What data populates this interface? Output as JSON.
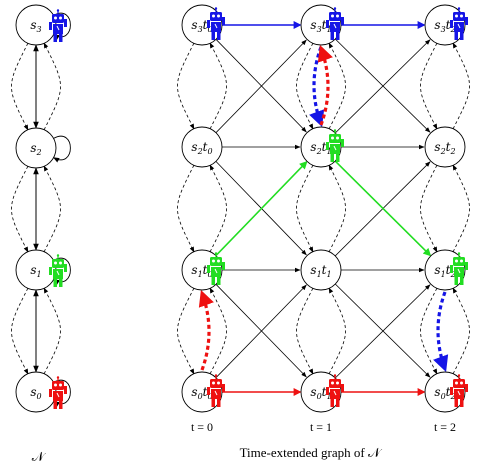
{
  "colors": {
    "blue": "#1515e6",
    "green": "#22dd22",
    "red": "#ee1111",
    "stroke": "#000000"
  },
  "left_graph": {
    "caption": "𝒩",
    "nodes": [
      {
        "id": "s3",
        "base": "s",
        "sub": "3",
        "robot": "blue"
      },
      {
        "id": "s2",
        "base": "s",
        "sub": "2",
        "robot": ""
      },
      {
        "id": "s1",
        "base": "s",
        "sub": "1",
        "robot": "green"
      },
      {
        "id": "s0",
        "base": "s",
        "sub": "0",
        "robot": "red"
      }
    ]
  },
  "time_graph": {
    "caption": "Time-extended graph of 𝒩",
    "time_labels": [
      "t = 0",
      "t = 1",
      "t = 2"
    ],
    "nodes": [
      [
        "s3t0",
        "s3t1",
        "s3t2"
      ],
      [
        "s2t0",
        "s2t1",
        "s2t2"
      ],
      [
        "s1t0",
        "s1t1",
        "s1t2"
      ],
      [
        "s0t0",
        "s0t1",
        "s0t2"
      ]
    ],
    "robots": [
      {
        "node": "s3t0",
        "color": "blue"
      },
      {
        "node": "s3t1",
        "color": "blue"
      },
      {
        "node": "s3t2",
        "color": "blue"
      },
      {
        "node": "s2t1",
        "color": "green"
      },
      {
        "node": "s1t0",
        "color": "green"
      },
      {
        "node": "s1t2",
        "color": "green"
      },
      {
        "node": "s0t0",
        "color": "red"
      },
      {
        "node": "s0t1",
        "color": "red"
      },
      {
        "node": "s0t2",
        "color": "red"
      }
    ],
    "paths": [
      {
        "color": "blue",
        "style": "solid",
        "from": "s3t0",
        "to": "s3t1"
      },
      {
        "color": "blue",
        "style": "solid",
        "from": "s3t1",
        "to": "s3t2"
      },
      {
        "color": "red",
        "style": "solid",
        "from": "s0t0",
        "to": "s0t1"
      },
      {
        "color": "red",
        "style": "solid",
        "from": "s0t1",
        "to": "s0t2"
      },
      {
        "color": "green",
        "style": "solid",
        "from": "s1t0",
        "to": "s2t1"
      },
      {
        "color": "green",
        "style": "solid",
        "from": "s2t1",
        "to": "s1t2"
      },
      {
        "color": "blue",
        "style": "dotted",
        "from": "s3t1",
        "to": "s2t1"
      },
      {
        "color": "red",
        "style": "dotted",
        "from": "s2t1",
        "to": "s3t1"
      },
      {
        "color": "red",
        "style": "dotted",
        "from": "s0t0",
        "to": "s1t0"
      },
      {
        "color": "blue",
        "style": "dotted",
        "from": "s1t2",
        "to": "s0t2"
      }
    ]
  }
}
